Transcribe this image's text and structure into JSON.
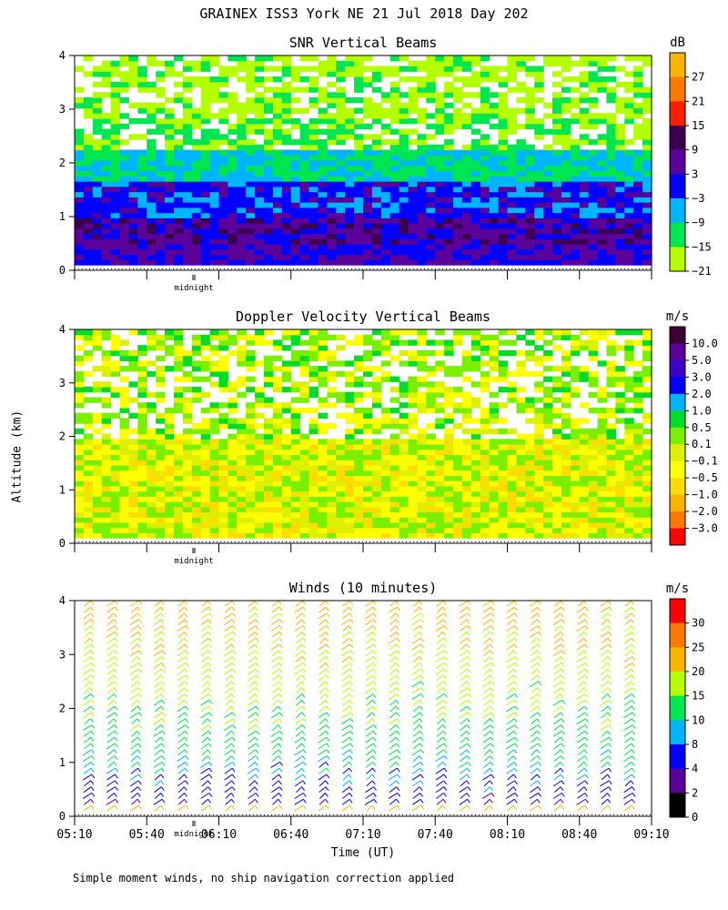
{
  "title": "GRAINEX ISS3 York NE  21 Jul 2018 Day 202",
  "ylabel": "Altitude (km)",
  "xlabel": "Time (UT)",
  "midnight_label": "midnight",
  "footnote": "Simple moment winds, no ship navigation correction applied",
  "panels": [
    {
      "title": "SNR Vertical Beams",
      "unit": "dB",
      "yticks": [
        "0",
        "1",
        "2",
        "3",
        "4"
      ],
      "colorbar_labels": [
        "27",
        "21",
        "15",
        "9",
        "3",
        "−3",
        "−9",
        "−15",
        "−21"
      ],
      "colorbar_colors": [
        "#ffb400",
        "#ff7800",
        "#ff1e00",
        "#3c0050",
        "#5a009b",
        "#0000ff",
        "#00b4ff",
        "#00e650",
        "#b4ff00"
      ]
    },
    {
      "title": "Doppler Velocity Vertical Beams",
      "unit": "m/s",
      "yticks": [
        "0",
        "1",
        "2",
        "3",
        "4"
      ],
      "colorbar_labels": [
        "10.0",
        "5.0",
        "3.0",
        "2.0",
        "1.0",
        "0.5",
        "0.1",
        "−0.1",
        "−0.5",
        "−1.0",
        "−2.0",
        "−3.0"
      ],
      "colorbar_colors": [
        "#3c0032",
        "#5a009b",
        "#3c00c8",
        "#0000ff",
        "#00b4ff",
        "#00dc28",
        "#78f000",
        "#dcf000",
        "#ffff00",
        "#ffdc00",
        "#ffb400",
        "#ff7800",
        "#ff0000"
      ]
    },
    {
      "title": "Winds (10 minutes)",
      "unit": "m/s",
      "yticks": [
        "0",
        "1",
        "2",
        "3",
        "4"
      ],
      "colorbar_labels": [
        "30",
        "25",
        "20",
        "15",
        "10",
        "8",
        "4",
        "2",
        "0"
      ],
      "colorbar_colors": [
        "#ff0000",
        "#ff7800",
        "#ffb400",
        "#b4ff00",
        "#00e650",
        "#00b4ff",
        "#0000ff",
        "#5a009b",
        "#000000"
      ]
    }
  ],
  "xticks": [
    "05:10",
    "05:40",
    "06:10",
    "06:40",
    "07:10",
    "07:40",
    "08:10",
    "08:40",
    "09:10"
  ],
  "chart_data": [
    {
      "type": "heatmap",
      "title": "SNR Vertical Beams",
      "unit": "dB",
      "x_range": [
        "05:10",
        "09:10"
      ],
      "ylim": [
        0,
        4
      ],
      "ylabel": "Altitude (km)",
      "levels": [
        -21,
        -15,
        -9,
        -3,
        3,
        9,
        15,
        21,
        27
      ],
      "layers": [
        {
          "altitude_km": [
            0.1,
            0.5
          ],
          "snr_db": 3
        },
        {
          "altitude_km": [
            0.5,
            1.0
          ],
          "snr_db": 6
        },
        {
          "altitude_km": [
            1.0,
            1.7
          ],
          "snr_db": 0
        },
        {
          "altitude_km": [
            1.7,
            2.2
          ],
          "snr_db": -9
        },
        {
          "altitude_km": [
            2.2,
            2.8
          ],
          "snr_db": -15
        },
        {
          "altitude_km": [
            2.8,
            4.0
          ],
          "snr_db": -18
        }
      ]
    },
    {
      "type": "heatmap",
      "title": "Doppler Velocity Vertical Beams",
      "unit": "m/s",
      "x_range": [
        "05:10",
        "09:10"
      ],
      "ylim": [
        0,
        4
      ],
      "ylabel": "Altitude (km)",
      "levels": [
        -3.0,
        -2.0,
        -1.0,
        -0.5,
        -0.1,
        0.1,
        0.5,
        1.0,
        2.0,
        3.0,
        5.0,
        10.0
      ],
      "layers": [
        {
          "altitude_km": [
            0.1,
            2.0
          ],
          "velocity_ms": -0.1
        },
        {
          "altitude_km": [
            2.0,
            4.0
          ],
          "velocity_ms": 0.1
        }
      ]
    },
    {
      "type": "scatter",
      "title": "Winds (10 minutes)",
      "unit": "m/s",
      "x_range": [
        "05:10",
        "09:10"
      ],
      "ylim": [
        0,
        4
      ],
      "xlabel": "Time (UT)",
      "ylabel": "Altitude (km)",
      "levels": [
        0,
        2,
        4,
        8,
        10,
        15,
        20,
        25,
        30
      ],
      "profile_times": [
        "05:10",
        "05:20",
        "05:30",
        "05:40",
        "05:50",
        "06:00",
        "06:10",
        "06:20",
        "06:30",
        "06:40",
        "06:50",
        "07:00",
        "07:10",
        "07:20",
        "07:30",
        "07:40",
        "07:50",
        "08:00",
        "08:10",
        "08:20",
        "08:30",
        "08:40",
        "08:50",
        "09:00"
      ],
      "typical_profile": [
        {
          "altitude_km": 0.2,
          "speed_ms": 4
        },
        {
          "altitude_km": 0.6,
          "speed_ms": 7
        },
        {
          "altitude_km": 1.0,
          "speed_ms": 10
        },
        {
          "altitude_km": 1.5,
          "speed_ms": 13
        },
        {
          "altitude_km": 2.0,
          "speed_ms": 15
        },
        {
          "altitude_km": 2.5,
          "speed_ms": 17
        },
        {
          "altitude_km": 3.0,
          "speed_ms": 19
        },
        {
          "altitude_km": 3.5,
          "speed_ms": 21
        },
        {
          "altitude_km": 4.0,
          "speed_ms": 22
        }
      ]
    }
  ]
}
